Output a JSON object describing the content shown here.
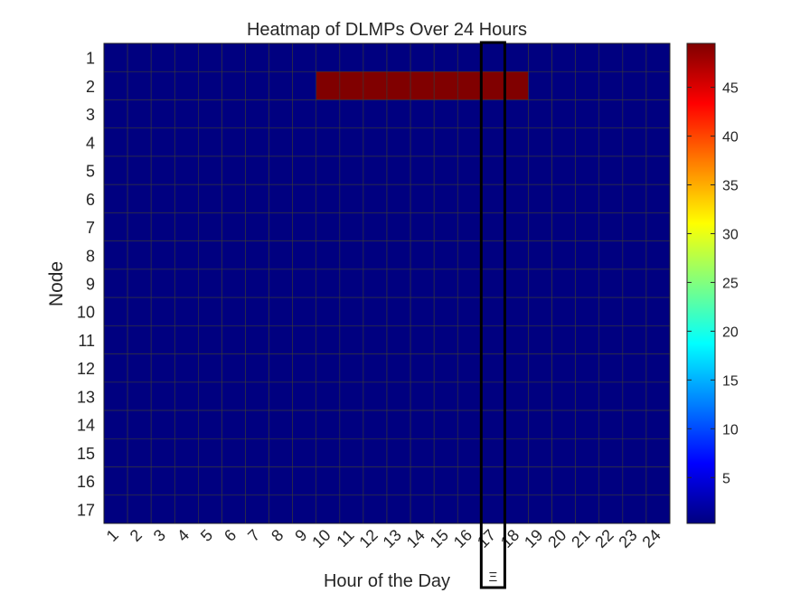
{
  "chart_data": {
    "type": "heatmap",
    "title": "Heatmap of DLMPs Over 24 Hours",
    "xlabel": "Hour of the Day",
    "ylabel": "Node",
    "x_categories": [
      "1",
      "2",
      "3",
      "4",
      "5",
      "6",
      "7",
      "8",
      "9",
      "10",
      "11",
      "12",
      "13",
      "14",
      "15",
      "16",
      "17",
      "18",
      "19",
      "20",
      "21",
      "22",
      "23",
      "24"
    ],
    "y_categories": [
      "1",
      "2",
      "3",
      "4",
      "5",
      "6",
      "7",
      "8",
      "9",
      "10",
      "11",
      "12",
      "13",
      "14",
      "15",
      "16",
      "17"
    ],
    "values": [
      [
        0.3,
        0.3,
        0.3,
        0.3,
        0.3,
        0.3,
        0.3,
        0.3,
        0.3,
        0.3,
        0.3,
        0.3,
        0.3,
        0.3,
        0.3,
        0.3,
        0.3,
        0.3,
        0.3,
        0.3,
        0.3,
        0.3,
        0.3,
        0.3
      ],
      [
        0.3,
        0.3,
        0.3,
        0.3,
        0.3,
        0.3,
        0.3,
        0.3,
        0.3,
        49.5,
        49.5,
        49.5,
        49.5,
        49.5,
        49.5,
        49.5,
        49.5,
        49.5,
        0.3,
        0.3,
        0.3,
        0.3,
        0.3,
        0.3
      ],
      [
        0.3,
        0.3,
        0.3,
        0.3,
        0.3,
        0.3,
        0.3,
        0.3,
        0.3,
        0.3,
        0.3,
        0.3,
        0.3,
        0.3,
        0.3,
        0.3,
        0.3,
        0.3,
        0.3,
        0.3,
        0.3,
        0.3,
        0.3,
        0.3
      ],
      [
        0.3,
        0.3,
        0.3,
        0.3,
        0.3,
        0.3,
        0.3,
        0.3,
        0.3,
        0.3,
        0.3,
        0.3,
        0.3,
        0.3,
        0.3,
        0.3,
        0.3,
        0.3,
        0.3,
        0.3,
        0.3,
        0.3,
        0.3,
        0.3
      ],
      [
        0.3,
        0.3,
        0.3,
        0.3,
        0.3,
        0.3,
        0.3,
        0.3,
        0.3,
        0.3,
        0.3,
        0.3,
        0.3,
        0.3,
        0.3,
        0.3,
        0.3,
        0.3,
        0.3,
        0.3,
        0.3,
        0.3,
        0.3,
        0.3
      ],
      [
        0.3,
        0.3,
        0.3,
        0.3,
        0.3,
        0.3,
        0.3,
        0.3,
        0.3,
        0.3,
        0.3,
        0.3,
        0.3,
        0.3,
        0.3,
        0.3,
        0.3,
        0.3,
        0.3,
        0.3,
        0.3,
        0.3,
        0.3,
        0.3
      ],
      [
        0.3,
        0.3,
        0.3,
        0.3,
        0.3,
        0.3,
        0.3,
        0.3,
        0.3,
        0.3,
        0.3,
        0.3,
        0.3,
        0.3,
        0.3,
        0.3,
        0.3,
        0.3,
        0.3,
        0.3,
        0.3,
        0.3,
        0.3,
        0.3
      ],
      [
        0.3,
        0.3,
        0.3,
        0.3,
        0.3,
        0.3,
        0.3,
        0.3,
        0.3,
        0.3,
        0.3,
        0.3,
        0.3,
        0.3,
        0.3,
        0.3,
        0.3,
        0.3,
        0.3,
        0.3,
        0.3,
        0.3,
        0.3,
        0.3
      ],
      [
        0.3,
        0.3,
        0.3,
        0.3,
        0.3,
        0.3,
        0.3,
        0.3,
        0.3,
        0.3,
        0.3,
        0.3,
        0.3,
        0.3,
        0.3,
        0.3,
        0.3,
        0.3,
        0.3,
        0.3,
        0.3,
        0.3,
        0.3,
        0.3
      ],
      [
        0.3,
        0.3,
        0.3,
        0.3,
        0.3,
        0.3,
        0.3,
        0.3,
        0.3,
        0.3,
        0.3,
        0.3,
        0.3,
        0.3,
        0.3,
        0.3,
        0.3,
        0.3,
        0.3,
        0.3,
        0.3,
        0.3,
        0.3,
        0.3
      ],
      [
        0.3,
        0.3,
        0.3,
        0.3,
        0.3,
        0.3,
        0.3,
        0.3,
        0.3,
        0.3,
        0.3,
        0.3,
        0.3,
        0.3,
        0.3,
        0.3,
        0.3,
        0.3,
        0.3,
        0.3,
        0.3,
        0.3,
        0.3,
        0.3
      ],
      [
        0.3,
        0.3,
        0.3,
        0.3,
        0.3,
        0.3,
        0.3,
        0.3,
        0.3,
        0.3,
        0.3,
        0.3,
        0.3,
        0.3,
        0.3,
        0.3,
        0.3,
        0.3,
        0.3,
        0.3,
        0.3,
        0.3,
        0.3,
        0.3
      ],
      [
        0.3,
        0.3,
        0.3,
        0.3,
        0.3,
        0.3,
        0.3,
        0.3,
        0.3,
        0.3,
        0.3,
        0.3,
        0.3,
        0.3,
        0.3,
        0.3,
        0.3,
        0.3,
        0.3,
        0.3,
        0.3,
        0.3,
        0.3,
        0.3
      ],
      [
        0.3,
        0.3,
        0.3,
        0.3,
        0.3,
        0.3,
        0.3,
        0.3,
        0.3,
        0.3,
        0.3,
        0.3,
        0.3,
        0.3,
        0.3,
        0.3,
        0.3,
        0.3,
        0.3,
        0.3,
        0.3,
        0.3,
        0.3,
        0.3
      ],
      [
        0.3,
        0.3,
        0.3,
        0.3,
        0.3,
        0.3,
        0.3,
        0.3,
        0.3,
        0.3,
        0.3,
        0.3,
        0.3,
        0.3,
        0.3,
        0.3,
        0.3,
        0.3,
        0.3,
        0.3,
        0.3,
        0.3,
        0.3,
        0.3
      ],
      [
        0.3,
        0.3,
        0.3,
        0.3,
        0.3,
        0.3,
        0.3,
        0.3,
        0.3,
        0.3,
        0.3,
        0.3,
        0.3,
        0.3,
        0.3,
        0.3,
        0.3,
        0.3,
        0.3,
        0.3,
        0.3,
        0.3,
        0.3,
        0.3
      ],
      [
        0.3,
        0.3,
        0.3,
        0.3,
        0.3,
        0.3,
        0.3,
        0.3,
        0.3,
        0.3,
        0.3,
        0.3,
        0.3,
        0.3,
        0.3,
        0.3,
        0.3,
        0.3,
        0.3,
        0.3,
        0.3,
        0.3,
        0.3,
        0.3
      ]
    ],
    "clim": [
      0.3,
      49.5
    ],
    "colormap": "jet",
    "colorbar": {
      "ticks": [
        5,
        10,
        15,
        20,
        25,
        30,
        35,
        40,
        45
      ],
      "tick_labels": [
        "5",
        "10",
        "15",
        "20",
        "25",
        "30",
        "35",
        "40",
        "45"
      ],
      "placement": "right"
    },
    "cell_grid": true,
    "grid_color": "#3a3a3a",
    "x_tick_rotation_deg": 45,
    "highlight": {
      "column": "17",
      "label": "Ξ",
      "color": "#000000"
    }
  }
}
